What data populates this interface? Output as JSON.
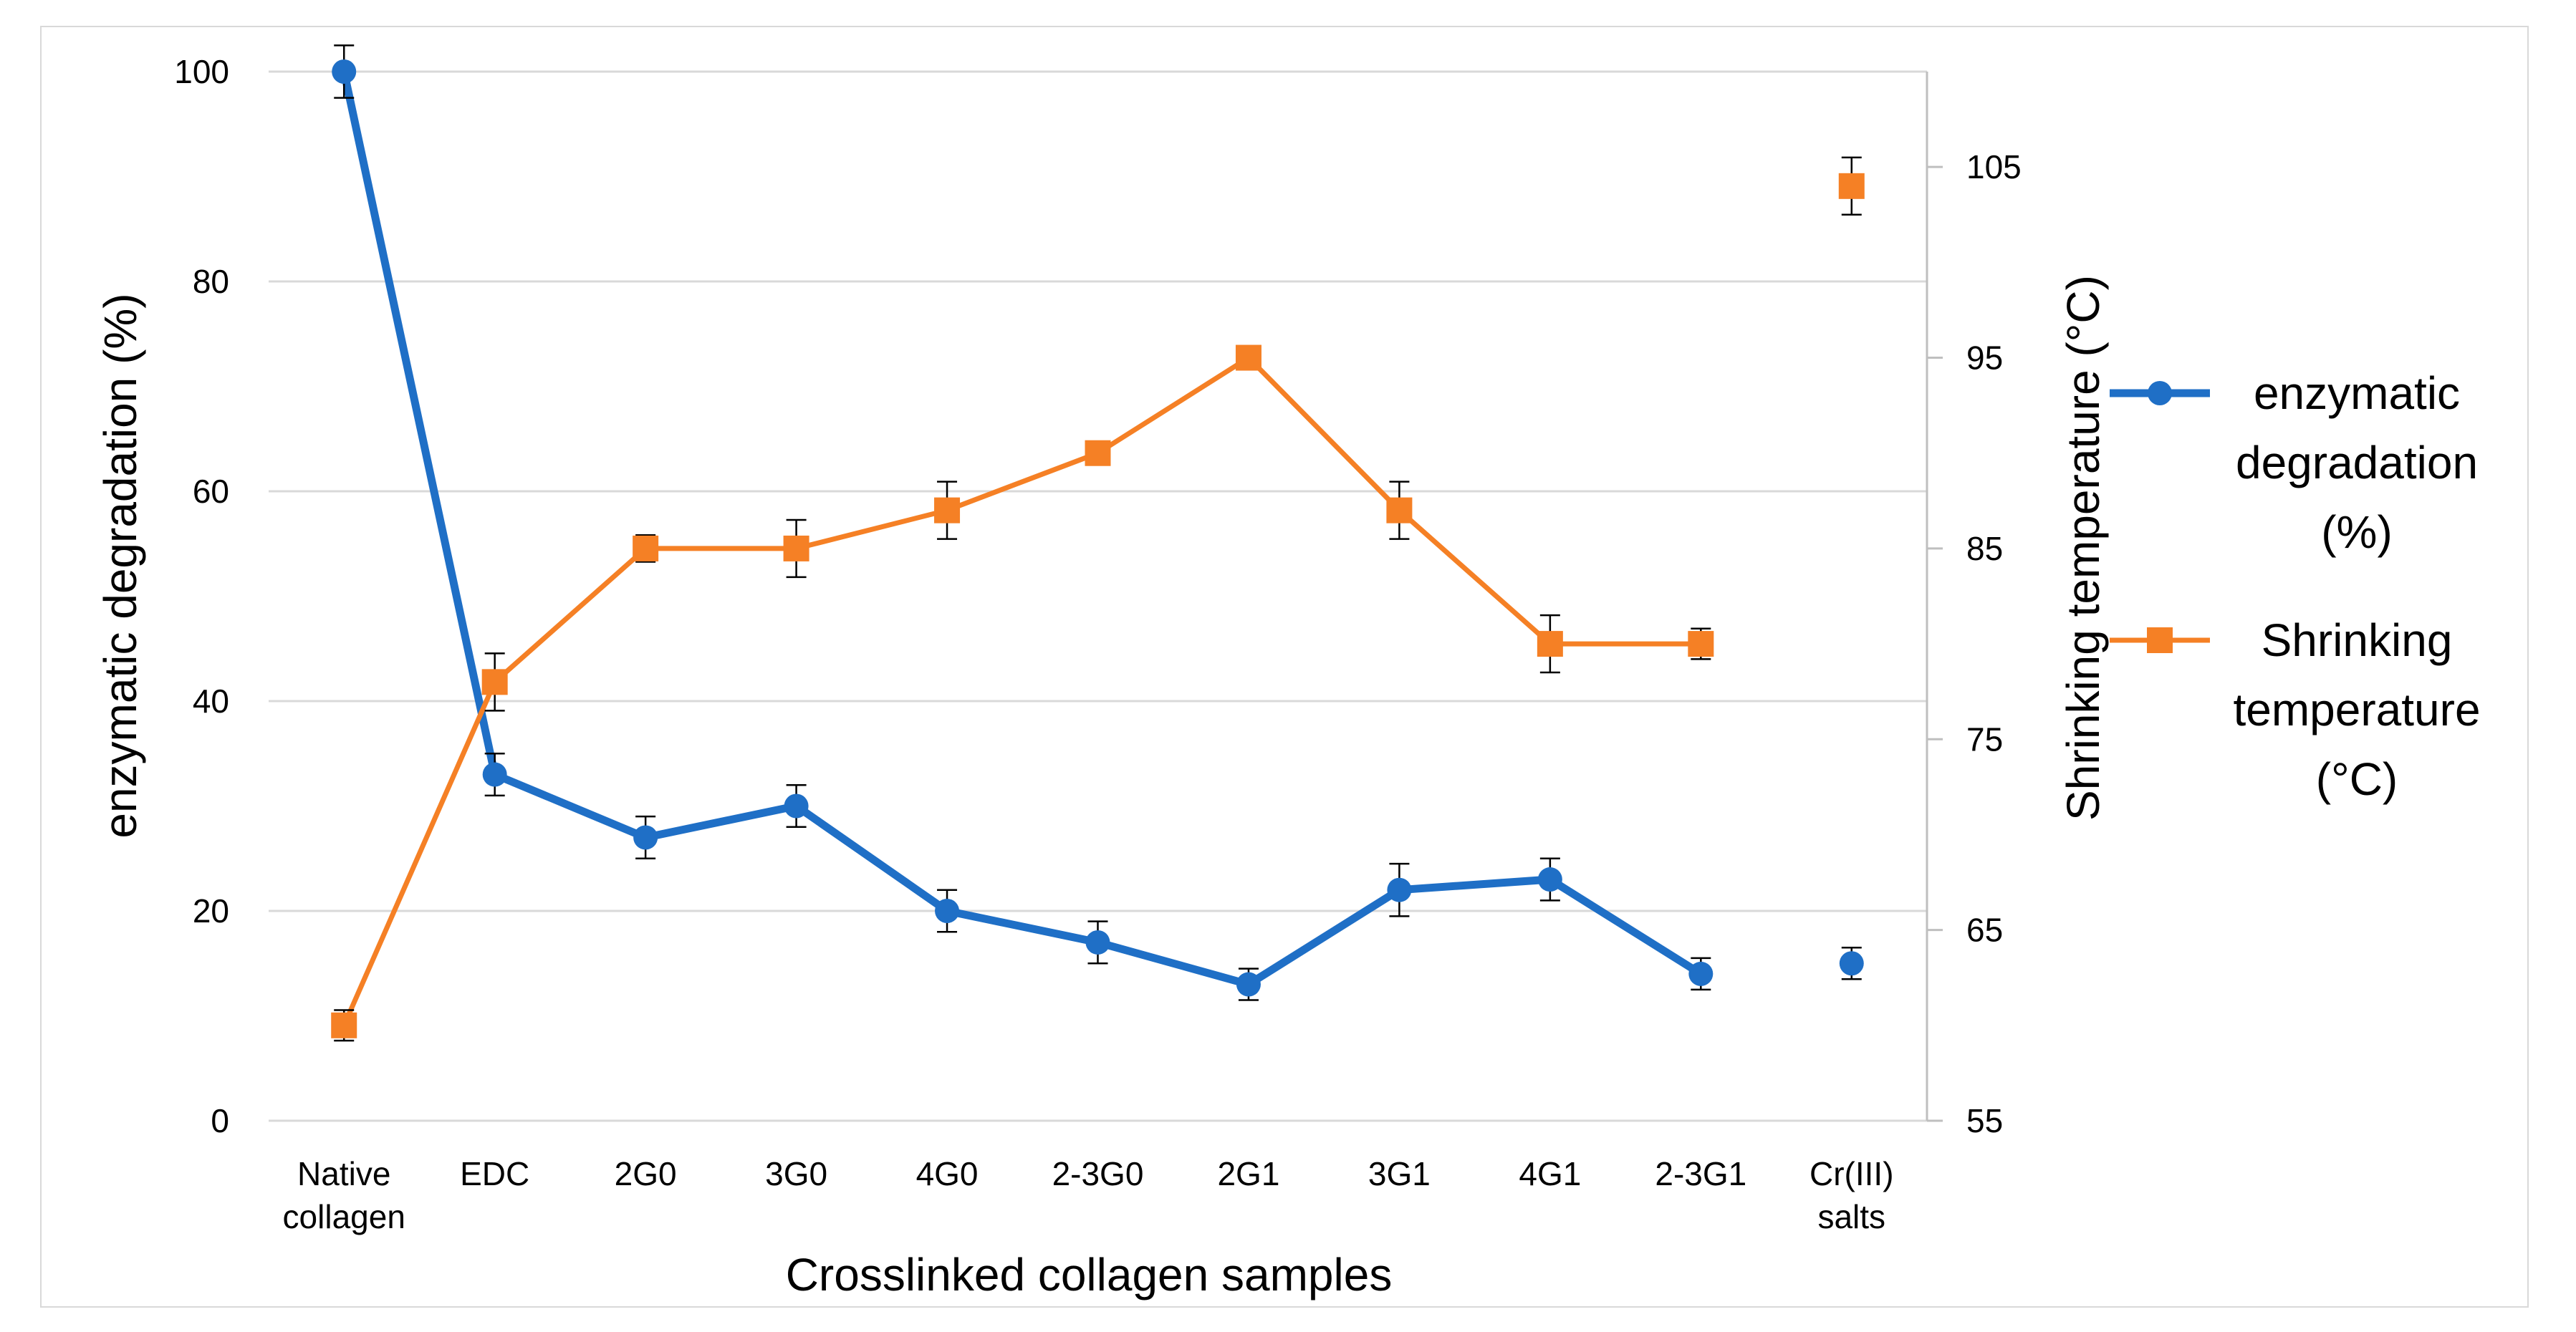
{
  "chart_data": {
    "type": "line",
    "categories": [
      [
        "Native",
        "collagen"
      ],
      [
        "EDC"
      ],
      [
        "2G0"
      ],
      [
        "3G0"
      ],
      [
        "4G0"
      ],
      [
        "2-3G0"
      ],
      [
        "2G1"
      ],
      [
        "3G1"
      ],
      [
        "4G1"
      ],
      [
        "2-3G1"
      ],
      [
        "Cr(III)",
        "salts"
      ]
    ],
    "xlabel": "Crosslinked collagen samples",
    "ylabel": "enzymatic degradation (%)",
    "y2label": "Shrinking temperature (°C)",
    "ylim": [
      0,
      100
    ],
    "y2lim": [
      55,
      110
    ],
    "yticks": [
      "0",
      "20",
      "40",
      "60",
      "80",
      "100"
    ],
    "y2ticks": [
      "55",
      "65",
      "75",
      "85",
      "95",
      "105"
    ],
    "grid": true,
    "legend_position": "right",
    "series": [
      {
        "name": "enzymatic degradation (%)",
        "legend_lines": [
          "enzymatic",
          "degradation",
          "(%)"
        ],
        "axis": "left",
        "color": "#1f6fc6",
        "marker": "circle",
        "values": [
          100,
          33,
          27,
          30,
          20,
          17,
          13,
          22,
          23,
          14,
          15
        ],
        "errors": [
          2.5,
          2,
          2,
          2,
          2,
          2,
          1.5,
          2.5,
          2,
          1.5,
          1.5
        ],
        "connected_points": 10
      },
      {
        "name": "Shrinking temperature (°C)",
        "legend_lines": [
          "Shrinking",
          "temperature",
          "(°C)"
        ],
        "axis": "right",
        "color": "#f58025",
        "marker": "square",
        "values": [
          60,
          78,
          85,
          85,
          87,
          90,
          95,
          87,
          80,
          80,
          104
        ],
        "errors": [
          0.8,
          1.5,
          0.7,
          1.5,
          1.5,
          0.5,
          0.5,
          1.5,
          1.5,
          0.8,
          1.5
        ],
        "connected_points": 10
      }
    ]
  }
}
